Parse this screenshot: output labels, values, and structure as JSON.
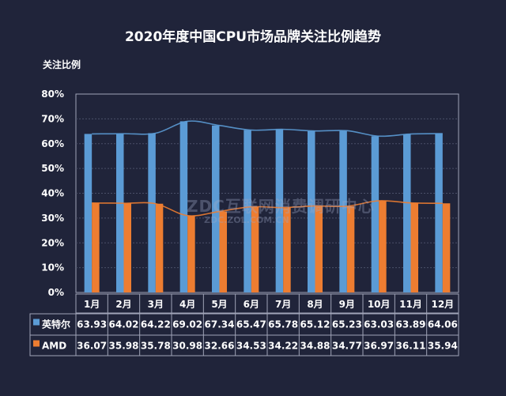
{
  "chart_data": {
    "type": "bar",
    "title": "2020年度中国CPU市场品牌关注比例趋势",
    "ylabel": "关注比例",
    "ylim": [
      0,
      80
    ],
    "yticks": [
      "0%",
      "10%",
      "20%",
      "30%",
      "40%",
      "50%",
      "60%",
      "70%",
      "80%"
    ],
    "grid": true,
    "legend": "data-table-left",
    "trendlines": true,
    "categories": [
      "1月",
      "2月",
      "3月",
      "4月",
      "5月",
      "6月",
      "7月",
      "8月",
      "9月",
      "10月",
      "11月",
      "12月"
    ],
    "series": [
      {
        "name": "英特尔",
        "color": "#5b9bd5",
        "values": [
          63.93,
          64.02,
          64.22,
          69.02,
          67.34,
          65.47,
          65.78,
          65.12,
          65.23,
          63.03,
          63.89,
          64.06
        ]
      },
      {
        "name": "AMD",
        "color": "#ed7d31",
        "values": [
          36.07,
          35.98,
          35.78,
          30.98,
          32.66,
          34.53,
          34.22,
          34.88,
          34.77,
          36.97,
          36.11,
          35.94
        ]
      }
    ],
    "watermark": "ZDC互联网消费调研中心 ZDC.ZOL.COM.CN"
  }
}
